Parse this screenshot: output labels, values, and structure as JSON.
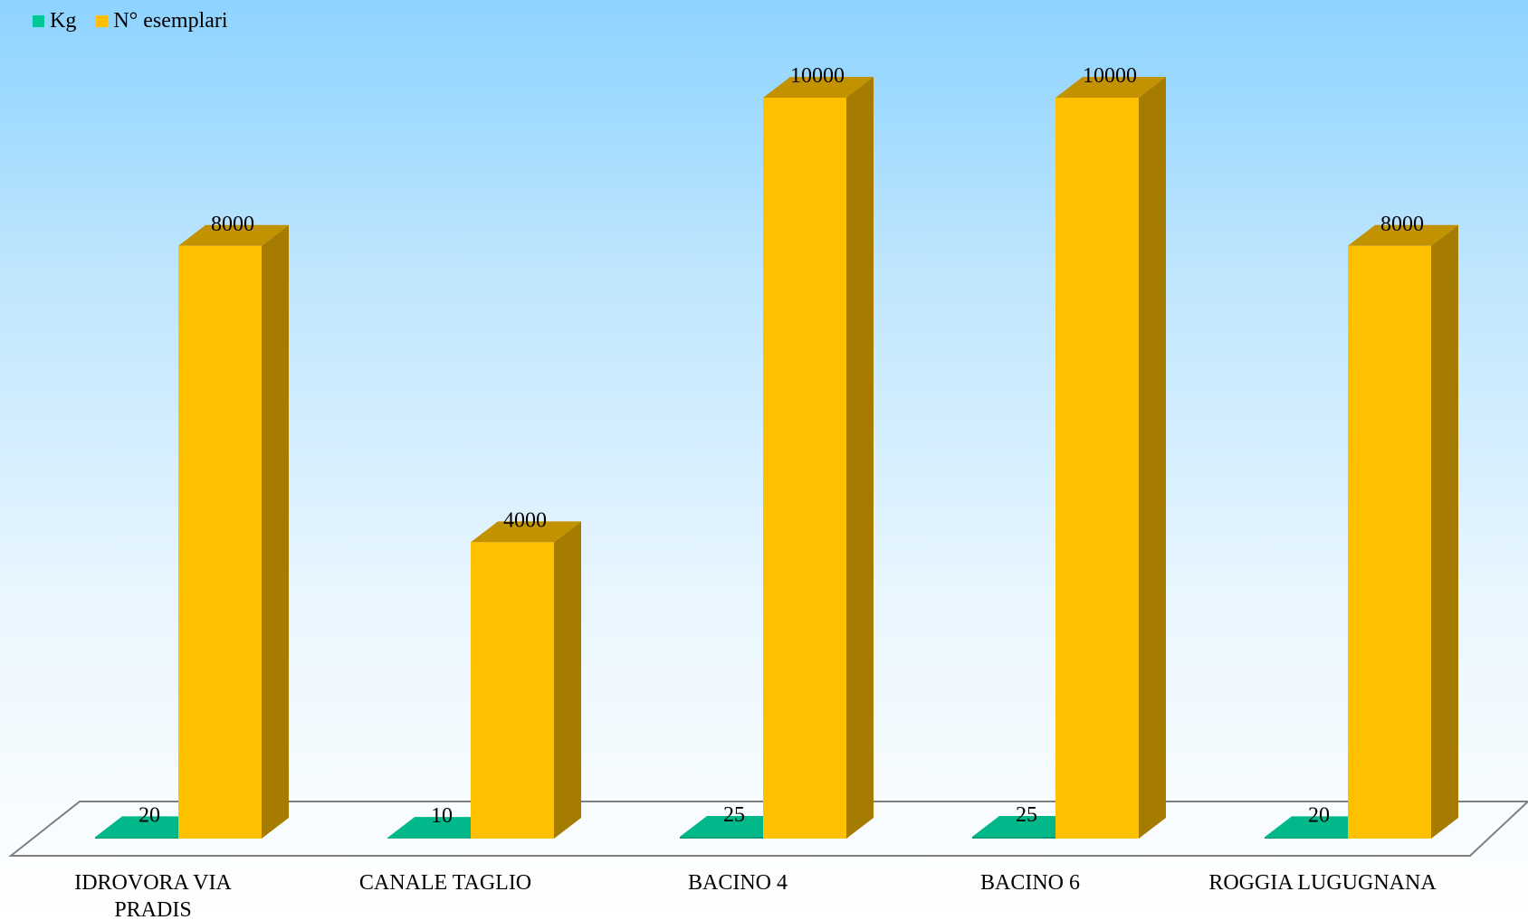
{
  "chart_data": {
    "type": "bar",
    "style": "3d-clustered-column",
    "categories": [
      "IDROVORA VIA PRADIS",
      "CANALE TAGLIO",
      "BACINO 4",
      "BACINO 6",
      "ROGGIA LUGUGNANA"
    ],
    "series": [
      {
        "name": "Kg",
        "values": [
          20,
          10,
          25,
          25,
          20
        ],
        "color": "#009e78",
        "side_color": "#007a5c",
        "top_color": "#00b889",
        "legend_color": "#00c896"
      },
      {
        "name": "N° esemplari",
        "values": [
          8000,
          4000,
          10000,
          10000,
          8000
        ],
        "color": "#ffc000",
        "side_color": "#a67c00",
        "top_color": "#c39200",
        "legend_color": "#ffc000"
      }
    ],
    "ylim": [
      0,
      10000
    ],
    "grid": false,
    "legend_position": "top-left",
    "data_labels": true,
    "colors": {
      "background_top": "#8dd3ff",
      "background_bottom": "#ffffff",
      "floor_stroke": "#7f7f7f"
    }
  }
}
